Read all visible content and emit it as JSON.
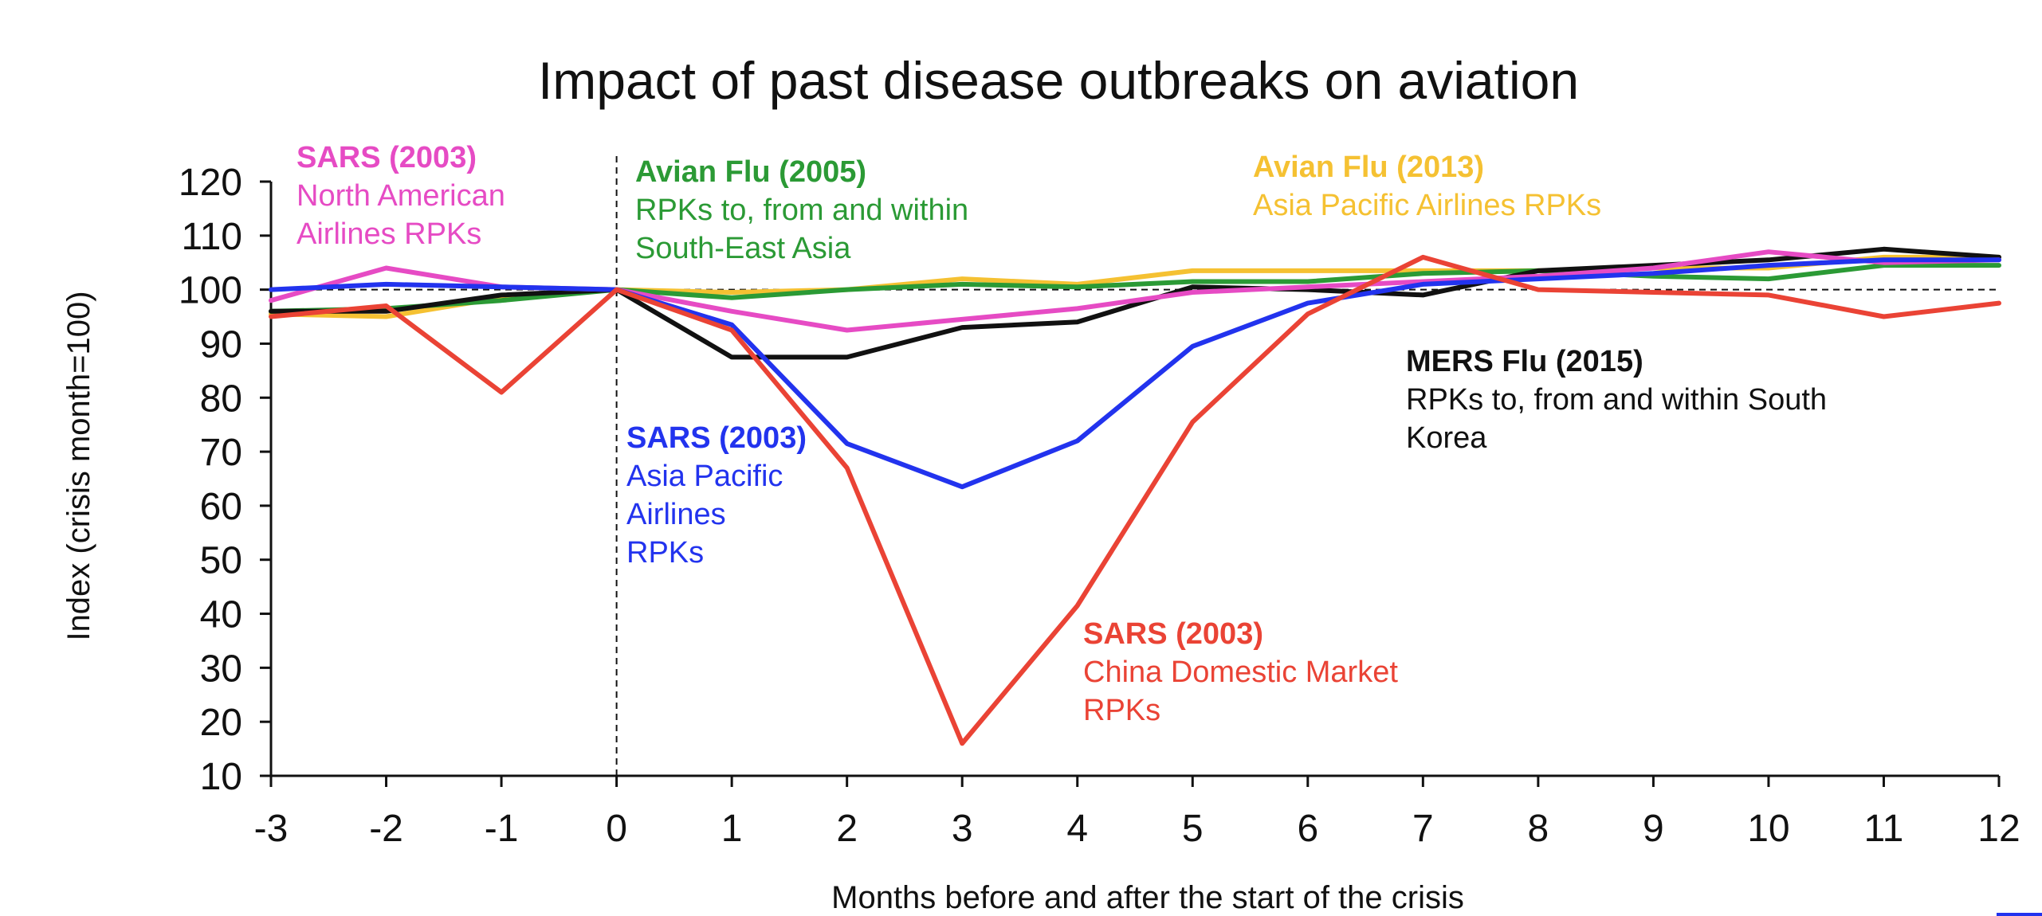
{
  "chart_data": {
    "type": "line",
    "title": "Impact of past disease outbreaks on aviation",
    "xlabel": "Months before and after the start of the crisis",
    "ylabel": "Index (crisis month=100)",
    "x": [
      -3,
      -2,
      -1,
      0,
      1,
      2,
      3,
      4,
      5,
      6,
      7,
      8,
      9,
      10,
      11,
      12
    ],
    "xlim": [
      -3,
      12
    ],
    "ylim": [
      10,
      120
    ],
    "yticks": [
      10,
      20,
      30,
      40,
      50,
      60,
      70,
      80,
      90,
      100,
      110,
      120
    ],
    "xticks": [
      "-3",
      "-2",
      "-1",
      "0",
      "1",
      "2",
      "3",
      "4",
      "5",
      "6",
      "7",
      "8",
      "9",
      "10",
      "11",
      "12"
    ],
    "reference_line_y": 100,
    "reference_line_x": 0,
    "grid": false,
    "legend": "none",
    "series": [
      {
        "color": "#f5c132",
        "values": [
          95.5,
          95.0,
          98.5,
          100,
          99.5,
          100.0,
          102.0,
          101.0,
          103.5,
          103.5,
          103.5,
          103.5,
          104.0,
          104.0,
          106.0,
          106.0
        ]
      },
      {
        "color": "#2b9a35",
        "values": [
          96.0,
          96.5,
          98.0,
          100,
          98.5,
          100.0,
          101.0,
          100.5,
          101.5,
          101.5,
          103.0,
          103.5,
          102.5,
          102.0,
          104.5,
          104.5
        ]
      },
      {
        "color": "#111111",
        "values": [
          96.0,
          96.0,
          99.0,
          100,
          87.5,
          87.5,
          93.0,
          94.0,
          100.5,
          100.0,
          99.0,
          103.5,
          104.5,
          105.5,
          107.5,
          106.0
        ]
      },
      {
        "color": "#e64bc4",
        "values": [
          98.0,
          104.0,
          100.5,
          100,
          96.0,
          92.5,
          94.5,
          96.5,
          99.5,
          100.5,
          101.5,
          102.5,
          104.0,
          107.0,
          105.0,
          105.5
        ]
      },
      {
        "color": "#2233ee",
        "values": [
          100.0,
          101.0,
          100.5,
          100,
          93.5,
          71.5,
          63.5,
          72.0,
          89.5,
          97.5,
          101.0,
          102.0,
          103.0,
          104.5,
          105.5,
          105.5
        ]
      },
      {
        "color": "#ea4335",
        "values": [
          95.0,
          97.0,
          81.0,
          100,
          92.5,
          67.0,
          16.0,
          41.5,
          75.5,
          95.5,
          106.0,
          100.0,
          99.5,
          99.0,
          95.0,
          97.5
        ]
      }
    ],
    "annotations": [
      {
        "id": "sars-na",
        "color": "#e64bc4",
        "heading": "SARS (2003)",
        "lines": [
          "North American",
          "Airlines RPKs"
        ]
      },
      {
        "id": "avian-2005",
        "color": "#2b9a35",
        "heading": "Avian Flu (2005)",
        "lines": [
          "RPKs to, from and within",
          "South-East Asia"
        ]
      },
      {
        "id": "avian-2013",
        "color": "#f5c132",
        "heading": "Avian Flu (2013)",
        "lines": [
          "Asia Pacific Airlines RPKs"
        ]
      },
      {
        "id": "mers-2015",
        "color": "#111111",
        "heading": "MERS Flu (2015)",
        "lines": [
          "RPKs to, from and within South",
          "Korea"
        ]
      },
      {
        "id": "sars-ap",
        "color": "#2233ee",
        "heading": "SARS (2003)",
        "lines": [
          "Asia Pacific",
          "Airlines",
          "RPKs"
        ]
      },
      {
        "id": "sars-china",
        "color": "#ea4335",
        "heading": "SARS (2003)",
        "lines": [
          "China Domestic Market",
          "RPKs"
        ]
      }
    ]
  }
}
